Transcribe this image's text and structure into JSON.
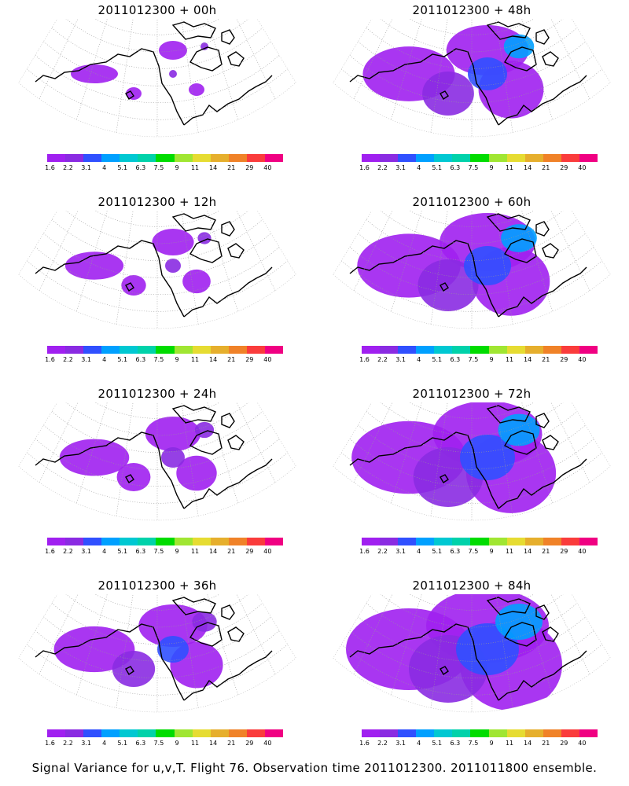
{
  "panels": [
    {
      "title": "2011012300 + 00h",
      "level": 0
    },
    {
      "title": "2011012300 + 48h",
      "level": 4
    },
    {
      "title": "2011012300 + 12h",
      "level": 1
    },
    {
      "title": "2011012300 + 60h",
      "level": 5
    },
    {
      "title": "2011012300 + 24h",
      "level": 2
    },
    {
      "title": "2011012300 + 72h",
      "level": 6
    },
    {
      "title": "2011012300 + 36h",
      "level": 3
    },
    {
      "title": "2011012300 + 84h",
      "level": 7
    }
  ],
  "colorbar": {
    "colors": [
      "#a020f0",
      "#8a2be2",
      "#3050ff",
      "#00a0ff",
      "#00c8d2",
      "#00d2aa",
      "#00dc00",
      "#a0e632",
      "#e6dc32",
      "#e6af2d",
      "#f08228",
      "#fa3c3c",
      "#f00082"
    ],
    "labels": [
      "1.6",
      "2.2",
      "3.1",
      "4",
      "5.1",
      "6.3",
      "7.5",
      "9",
      "11",
      "14",
      "21",
      "29",
      "40"
    ]
  },
  "footer": "Signal Variance for u,v,T. Flight 76. Observation time 2011012300. 2011011800 ensemble."
}
